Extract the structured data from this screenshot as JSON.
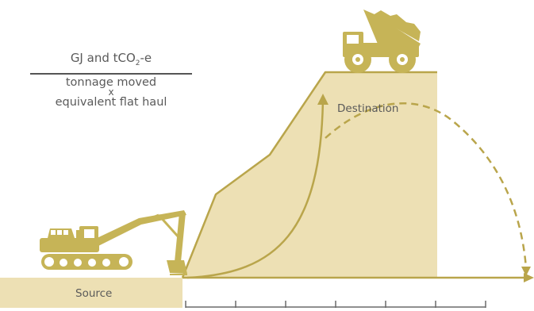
{
  "formula": {
    "numerator_prefix": "GJ and tCO",
    "numerator_sub": "2",
    "numerator_suffix": "-e",
    "denominator_line1": "tonnage moved",
    "denominator_op": "x",
    "denominator_line2": "equivalent flat haul"
  },
  "labels": {
    "destination": "Destination",
    "source": "Source"
  },
  "colors": {
    "fill": "#ede0b4",
    "stroke": "#b9a54b",
    "text": "#5a5a5a"
  },
  "icons": {
    "loader": "excavator-icon",
    "hauler": "dump-truck-icon"
  },
  "axis": {
    "tick_count": 7
  }
}
